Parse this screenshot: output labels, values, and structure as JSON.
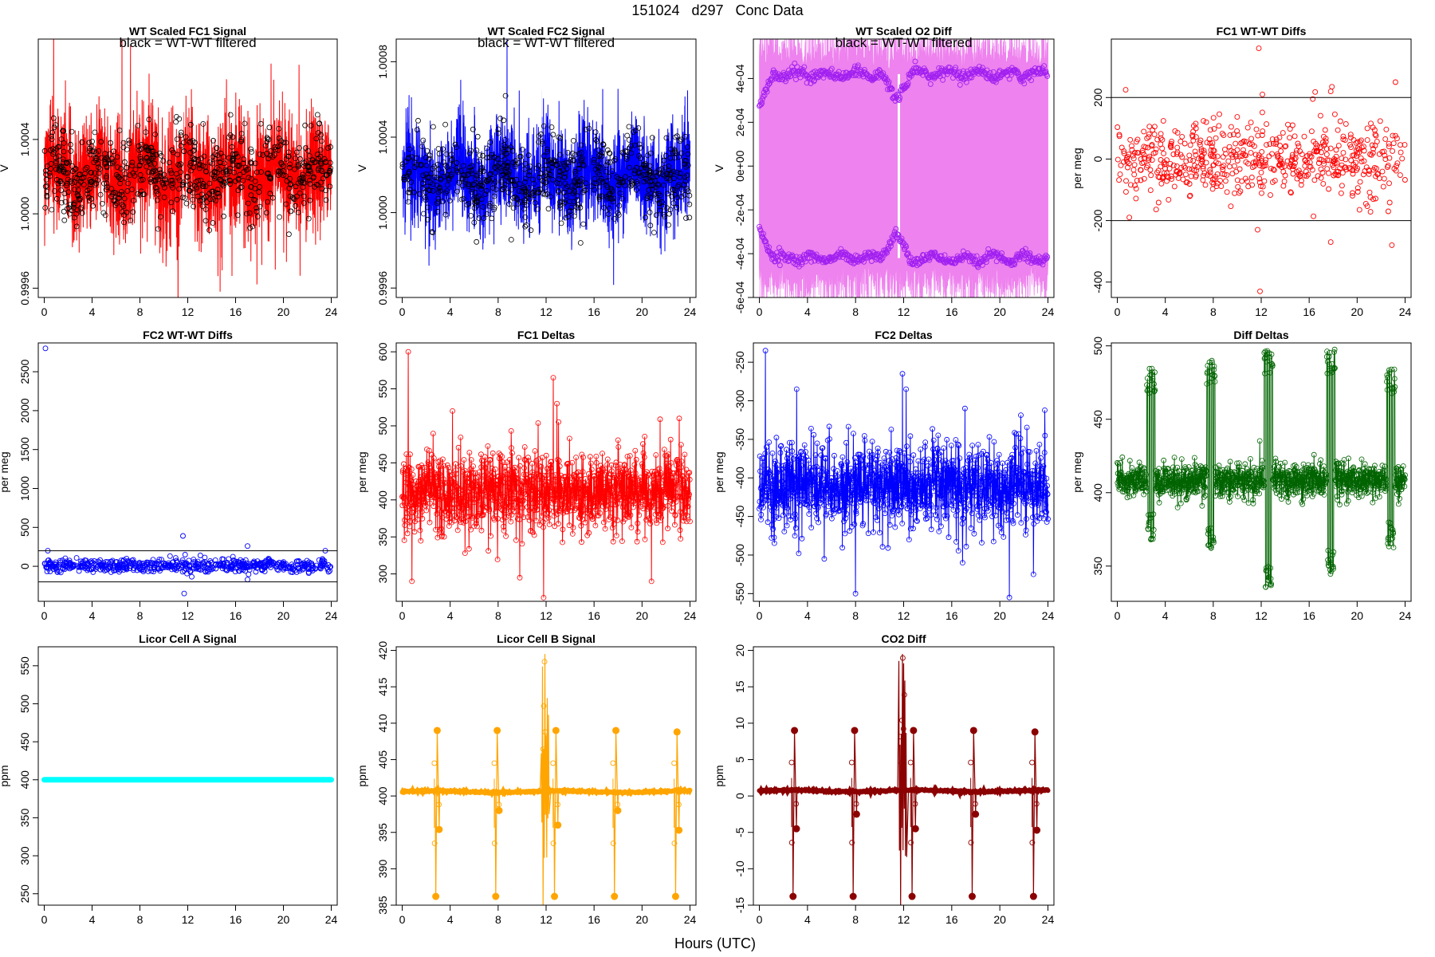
{
  "figure": {
    "title_parts": [
      "151024",
      "d297",
      "Conc Data"
    ],
    "xlabel": "Hours (UTC)",
    "annotation": "black = WT-WT filtered"
  },
  "chart_data": [
    {
      "id": "p1",
      "type": "line",
      "title": "WT Scaled FC1 Signal",
      "ylabel": "V",
      "xlim": [
        -0.5,
        24.5
      ],
      "ylim": [
        0.99955,
        1.00094
      ],
      "xticks": [
        "0",
        "4",
        "8",
        "12",
        "16",
        "20",
        "24"
      ],
      "yticks": [
        {
          "v": 0.9996,
          "label": "0.9996"
        },
        {
          "v": 1.0,
          "label": "1.0000"
        },
        {
          "v": 1.0004,
          "label": "1.0004"
        }
      ],
      "series": [
        {
          "role": "band",
          "color": "#FF0000",
          "center": 1.00021,
          "amp": 0.0002,
          "spike": 0.00065,
          "dropout_at": 11.6
        },
        {
          "role": "filtered",
          "color": "#000000",
          "center": 1.00021,
          "amp": 0.00013,
          "count": 700
        }
      ],
      "annotation": true
    },
    {
      "id": "p2",
      "type": "line",
      "title": "WT Scaled FC2 Signal",
      "ylabel": "V",
      "xlim": [
        -0.5,
        24.5
      ],
      "ylim": [
        0.99955,
        1.00092
      ],
      "xticks": [
        "0",
        "4",
        "8",
        "12",
        "16",
        "20",
        "24"
      ],
      "yticks": [
        {
          "v": 0.9996,
          "label": "0.9996"
        },
        {
          "v": 1.0,
          "label": "1.0000"
        },
        {
          "v": 1.0004,
          "label": "1.0004"
        },
        {
          "v": 1.0008,
          "label": "1.0008"
        }
      ],
      "series": [
        {
          "role": "band",
          "color": "#0000FF",
          "center": 1.00019,
          "amp": 0.00017,
          "spike": 0.00045,
          "dropout_at": 11.6
        },
        {
          "role": "filtered",
          "color": "#000000",
          "center": 1.00019,
          "amp": 0.00012,
          "count": 700
        }
      ],
      "annotation": true
    },
    {
      "id": "p3",
      "type": "line",
      "title": "WT Scaled O2 Diff",
      "ylabel": "V",
      "xlim": [
        -0.5,
        24.5
      ],
      "ylim": [
        -0.0006,
        0.00058
      ],
      "xticks": [
        "0",
        "4",
        "8",
        "12",
        "16",
        "20",
        "24"
      ],
      "yticks": [
        {
          "v": -0.0006,
          "label": "-6e-04"
        },
        {
          "v": -0.0004,
          "label": "-4e-04"
        },
        {
          "v": -0.0002,
          "label": "-2e-04"
        },
        {
          "v": 0,
          "label": "0e+00"
        },
        {
          "v": 0.0002,
          "label": "2e-04"
        },
        {
          "v": 0.0004,
          "label": "4e-04"
        }
      ],
      "series": [
        {
          "role": "band",
          "color": "#EE82EE",
          "upper": 0.00042,
          "lower": -0.00042,
          "dropout_at": 11.6
        },
        {
          "role": "upper-points",
          "color": "#A020F0",
          "level": 0.00042
        },
        {
          "role": "lower-points",
          "color": "#A020F0",
          "level": -0.00042
        }
      ],
      "annotation": true
    },
    {
      "id": "p4",
      "type": "scatter",
      "title": "FC1 WT-WT Diffs",
      "ylabel": "per meg",
      "xlim": [
        -0.5,
        24.5
      ],
      "ylim": [
        -450,
        390
      ],
      "xticks": [
        "0",
        "4",
        "8",
        "12",
        "16",
        "20",
        "24"
      ],
      "yticks": [
        {
          "v": -400,
          "label": "-400"
        },
        {
          "v": -200,
          "label": "-200"
        },
        {
          "v": 0,
          "label": "0"
        },
        {
          "v": 200,
          "label": "200"
        }
      ],
      "hlines": [
        200,
        -200
      ],
      "series": [
        {
          "role": "scatter",
          "color": "#FF0000",
          "center": 5,
          "spread": 60,
          "count": 600,
          "outliers": [
            [
              0.7,
              225
            ],
            [
              1.0,
              -190
            ],
            [
              11.8,
              360
            ],
            [
              12.1,
              210
            ],
            [
              11.9,
              -430
            ],
            [
              11.7,
              -230
            ],
            [
              16.3,
              195
            ],
            [
              16.5,
              218
            ],
            [
              17.9,
              235
            ],
            [
              17.8,
              220
            ],
            [
              17.8,
              -270
            ],
            [
              23.2,
              250
            ],
            [
              22.9,
              -280
            ],
            [
              22.6,
              -170
            ],
            [
              20.2,
              -165
            ]
          ]
        }
      ]
    },
    {
      "id": "p5",
      "type": "scatter",
      "title": "FC2 WT-WT Diffs",
      "ylabel": "per meg",
      "xlim": [
        -0.5,
        24.5
      ],
      "ylim": [
        -450,
        2870
      ],
      "xticks": [
        "0",
        "4",
        "8",
        "12",
        "16",
        "20",
        "24"
      ],
      "yticks": [
        {
          "v": 0,
          "label": "0"
        },
        {
          "v": 500,
          "label": "500"
        },
        {
          "v": 1000,
          "label": "1000"
        },
        {
          "v": 1500,
          "label": "1500"
        },
        {
          "v": 2000,
          "label": "2000"
        },
        {
          "v": 2500,
          "label": "2500"
        }
      ],
      "hlines": [
        200,
        -200
      ],
      "series": [
        {
          "role": "scatter",
          "color": "#0000FF",
          "center": 10,
          "spread": 45,
          "count": 600,
          "outliers": [
            [
              0.1,
              2800
            ],
            [
              0.3,
              200
            ],
            [
              11.6,
              390
            ],
            [
              11.7,
              -350
            ],
            [
              17.0,
              260
            ],
            [
              17.0,
              -170
            ],
            [
              23.5,
              200
            ]
          ]
        }
      ]
    },
    {
      "id": "p6",
      "type": "line",
      "title": "FC1 Deltas",
      "ylabel": "per meg",
      "xlim": [
        -0.5,
        24.5
      ],
      "ylim": [
        263,
        612
      ],
      "xticks": [
        "0",
        "4",
        "8",
        "12",
        "16",
        "20",
        "24"
      ],
      "yticks": [
        {
          "v": 300,
          "label": "300"
        },
        {
          "v": 350,
          "label": "350"
        },
        {
          "v": 400,
          "label": "400"
        },
        {
          "v": 450,
          "label": "450"
        },
        {
          "v": 500,
          "label": "500"
        },
        {
          "v": 550,
          "label": "550"
        },
        {
          "v": 600,
          "label": "600"
        }
      ],
      "series": [
        {
          "role": "noisy-line",
          "color": "#FF0000",
          "center": 410,
          "spread": 28,
          "count": 1100,
          "spikes": [
            [
              0.5,
              600
            ],
            [
              0.8,
              290
            ],
            [
              12.6,
              565
            ],
            [
              11.8,
              268
            ],
            [
              12.9,
              530
            ],
            [
              4.2,
              520
            ],
            [
              9.8,
              295
            ],
            [
              20.8,
              290
            ],
            [
              23.1,
              510
            ]
          ]
        }
      ]
    },
    {
      "id": "p7",
      "type": "line",
      "title": "FC2 Deltas",
      "ylabel": "per meg",
      "xlim": [
        -0.5,
        24.5
      ],
      "ylim": [
        -560,
        -225
      ],
      "xticks": [
        "0",
        "4",
        "8",
        "12",
        "16",
        "20",
        "24"
      ],
      "yticks": [
        {
          "v": -550,
          "label": "-550"
        },
        {
          "v": -500,
          "label": "-500"
        },
        {
          "v": -450,
          "label": "-450"
        },
        {
          "v": -400,
          "label": "-400"
        },
        {
          "v": -350,
          "label": "-350"
        },
        {
          "v": -300,
          "label": "-300"
        },
        {
          "v": -250,
          "label": "-250"
        }
      ],
      "series": [
        {
          "role": "noisy-line",
          "color": "#0000FF",
          "center": -410,
          "spread": 28,
          "count": 1100,
          "spikes": [
            [
              0.5,
              -235
            ],
            [
              8.0,
              -550
            ],
            [
              11.9,
              -265
            ],
            [
              12.2,
              -285
            ],
            [
              16.9,
              -510
            ],
            [
              17.1,
              -310
            ],
            [
              20.8,
              -555
            ],
            [
              22.8,
              -525
            ],
            [
              3.1,
              -285
            ],
            [
              5.4,
              -505
            ]
          ]
        }
      ]
    },
    {
      "id": "p8",
      "type": "line",
      "title": "Diff Deltas",
      "ylabel": "per meg",
      "xlim": [
        -0.5,
        24.5
      ],
      "ylim": [
        326,
        502
      ],
      "xticks": [
        "0",
        "4",
        "8",
        "12",
        "16",
        "20",
        "24"
      ],
      "yticks": [
        {
          "v": 350,
          "label": "350"
        },
        {
          "v": 400,
          "label": "400"
        },
        {
          "v": 450,
          "label": "450"
        },
        {
          "v": 500,
          "label": "500"
        }
      ],
      "series": [
        {
          "role": "noisy-line",
          "color": "#006400",
          "center": 408,
          "spread": 6,
          "count": 1100,
          "bursts": [
            [
              2.8,
              485,
              368
            ],
            [
              7.8,
              492,
              360
            ],
            [
              12.6,
              498,
              335
            ],
            [
              17.8,
              498,
              343
            ],
            [
              22.8,
              484,
              362
            ]
          ]
        }
      ]
    },
    {
      "id": "p9",
      "type": "line",
      "title": "Licor Cell A Signal",
      "ylabel": "ppm",
      "xlim": [
        -0.5,
        24.5
      ],
      "ylim": [
        235,
        575
      ],
      "xticks": [
        "0",
        "4",
        "8",
        "12",
        "16",
        "20",
        "24"
      ],
      "yticks": [
        {
          "v": 250,
          "label": "250"
        },
        {
          "v": 300,
          "label": "300"
        },
        {
          "v": 350,
          "label": "350"
        },
        {
          "v": 400,
          "label": "400"
        },
        {
          "v": 450,
          "label": "450"
        },
        {
          "v": 500,
          "label": "500"
        },
        {
          "v": 550,
          "label": "550"
        }
      ],
      "series": [
        {
          "role": "flat",
          "color": "#00FFFF",
          "value": 400
        }
      ]
    },
    {
      "id": "p10",
      "type": "line",
      "title": "Licor Cell B Signal",
      "ylabel": "ppm",
      "xlim": [
        -0.5,
        24.5
      ],
      "ylim": [
        385,
        420.5
      ],
      "xticks": [
        "0",
        "4",
        "8",
        "12",
        "16",
        "20",
        "24"
      ],
      "yticks": [
        {
          "v": 385,
          "label": "385"
        },
        {
          "v": 390,
          "label": "390"
        },
        {
          "v": 395,
          "label": "395"
        },
        {
          "v": 400,
          "label": "400"
        },
        {
          "v": 405,
          "label": "405"
        },
        {
          "v": 410,
          "label": "410"
        },
        {
          "v": 415,
          "label": "415"
        },
        {
          "v": 420,
          "label": "420"
        }
      ],
      "series": [
        {
          "role": "baseline-bursts",
          "color": "#FFA500",
          "base": 400.6,
          "bursts": [
            [
              2.8,
              409,
              386.2,
              395.4
            ],
            [
              7.8,
              409,
              386.2,
              398
            ],
            [
              12.7,
              409,
              386.2,
              396
            ],
            [
              17.7,
              409,
              386.2,
              398
            ],
            [
              22.8,
              408.8,
              386.2,
              395.3
            ]
          ],
          "spike": [
            11.9,
            419.5,
            384.5
          ]
        }
      ]
    },
    {
      "id": "p11",
      "type": "line",
      "title": "CO2 Diff",
      "ylabel": "ppm",
      "xlim": [
        -0.5,
        24.5
      ],
      "ylim": [
        -15,
        20.5
      ],
      "xticks": [
        "0",
        "4",
        "8",
        "12",
        "16",
        "20",
        "24"
      ],
      "yticks": [
        {
          "v": -15,
          "label": "-15"
        },
        {
          "v": -10,
          "label": "-10"
        },
        {
          "v": -5,
          "label": "-5"
        },
        {
          "v": 0,
          "label": "0"
        },
        {
          "v": 5,
          "label": "5"
        },
        {
          "v": 10,
          "label": "10"
        },
        {
          "v": 15,
          "label": "15"
        },
        {
          "v": 20,
          "label": "20"
        }
      ],
      "series": [
        {
          "role": "baseline-bursts",
          "color": "#8B0000",
          "base": 0.7,
          "bursts": [
            [
              2.8,
              9,
              -13.8,
              -4.5
            ],
            [
              7.8,
              9,
              -13.8,
              -2.5
            ],
            [
              12.7,
              9,
              -13.8,
              -4.5
            ],
            [
              17.7,
              9,
              -13.8,
              -2.5
            ],
            [
              22.8,
              8.8,
              -13.8,
              -4.7
            ]
          ],
          "spike": [
            11.9,
            19.5,
            -15.5
          ]
        }
      ]
    }
  ]
}
